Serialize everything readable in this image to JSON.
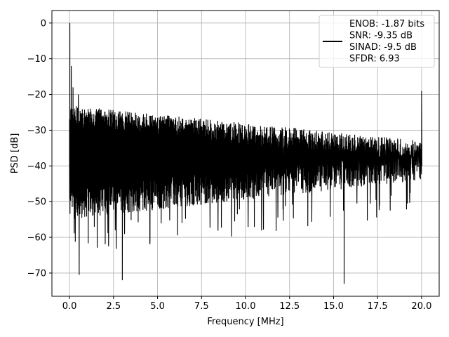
{
  "chart_data": {
    "type": "line",
    "title": "",
    "xlabel": "Frequency [MHz]",
    "ylabel": "PSD [dB]",
    "xlim": [
      -1.0,
      21.0
    ],
    "ylim": [
      -76.5,
      3.5
    ],
    "xticks": [
      0.0,
      2.5,
      5.0,
      7.5,
      10.0,
      12.5,
      15.0,
      17.5,
      20.0
    ],
    "xtick_labels": [
      "0.0",
      "2.5",
      "5.0",
      "7.5",
      "10.0",
      "12.5",
      "15.0",
      "17.5",
      "20.0"
    ],
    "yticks": [
      0,
      -10,
      -20,
      -30,
      -40,
      -50,
      -60,
      -70
    ],
    "ytick_labels": [
      "0",
      "−10",
      "−20",
      "−30",
      "−40",
      "−50",
      "−60",
      "−70"
    ],
    "grid": true,
    "legend_position": "top-right",
    "series": [
      {
        "name": "",
        "color": "#000000",
        "x_start": 0.0,
        "x_end": 20.0,
        "noise_band_upper_db": [
          -23,
          -33
        ],
        "noise_band_lower_db": [
          -55,
          -44
        ],
        "points": [
          [
            0.0,
            -38.0
          ],
          [
            0.02,
            0.0
          ],
          [
            0.05,
            -40.5
          ],
          [
            0.1,
            -12.0
          ],
          [
            0.15,
            -38.0
          ],
          [
            0.2,
            -18.0
          ],
          [
            0.3,
            -45.0
          ],
          [
            0.5,
            -20.0
          ],
          [
            0.55,
            -70.5
          ],
          [
            0.6,
            -25.0
          ],
          [
            3.0,
            -72.0
          ],
          [
            3.05,
            -30.0
          ],
          [
            15.6,
            -73.0
          ],
          [
            15.65,
            -32.0
          ],
          [
            19.95,
            -40.0
          ],
          [
            20.0,
            -19.0
          ],
          [
            20.02,
            -40.0
          ]
        ]
      }
    ],
    "legend": {
      "entries": [
        "ENOB: -1.87 bits",
        "SNR: -9.35 dB",
        "SINAD: -9.5 dB",
        "SFDR: 6.93"
      ]
    }
  }
}
